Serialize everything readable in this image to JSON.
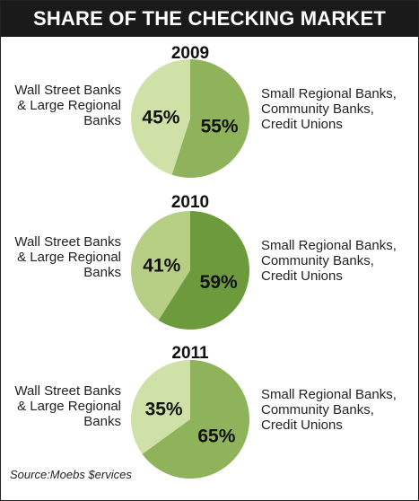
{
  "title": "SHARE OF THE CHECKING MARKET",
  "source": "Source:Moebs $ervices",
  "chart_data": [
    {
      "type": "pie",
      "title": "2009",
      "categories": [
        "Wall Street Banks & Large Regional Banks",
        "Small Regional Banks, Community Banks, Credit Unions"
      ],
      "values": [
        45,
        55
      ],
      "value_labels": [
        "45%",
        "55%"
      ],
      "colors": [
        "#d0e1a8",
        "#8fb35a"
      ]
    },
    {
      "type": "pie",
      "title": "2010",
      "categories": [
        "Wall Street Banks & Large Regional Banks",
        "Small Regional Banks, Community Banks, Credit Unions"
      ],
      "values": [
        41,
        59
      ],
      "value_labels": [
        "41%",
        "59%"
      ],
      "colors": [
        "#b6cf84",
        "#6e9a3e"
      ]
    },
    {
      "type": "pie",
      "title": "2011",
      "categories": [
        "Wall Street Banks & Large Regional Banks",
        "Small Regional Banks, Community Banks, Credit Unions"
      ],
      "values": [
        35,
        65
      ],
      "value_labels": [
        "35%",
        "65%"
      ],
      "colors": [
        "#d0e1a8",
        "#8fb35a"
      ]
    }
  ]
}
